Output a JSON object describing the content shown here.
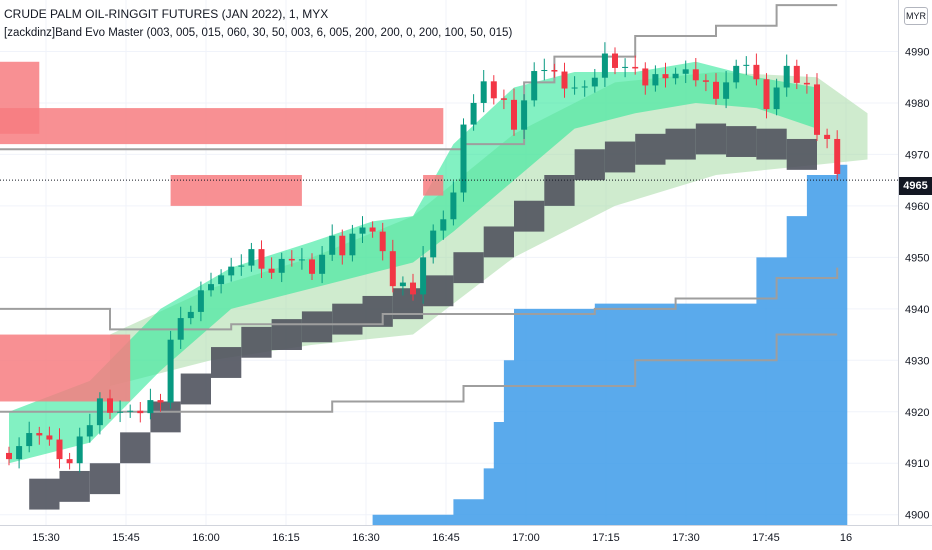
{
  "header": {
    "title": "CRUDE PALM OIL-RINGGIT FUTURES (JAN 2022), 1, MYX",
    "study": "[zackdinz]Band Evo Master (003, 005, 015, 060, 30, 50, 003, 6, 005, 200, 200, 0, 200, 100, 50, 015)"
  },
  "currency_badge": "MYR",
  "last_price_label": "4965",
  "colors": {
    "bull_candle": "#089981",
    "bear_candle": "#f23645",
    "fast_band": "#2ee89a",
    "slow_band": "#a7dba5",
    "resistance_zone": "#f77c80",
    "support_zone": "#3d9be9",
    "dark_step": "#50535e",
    "signal_magenta": "#e91e63",
    "signal_purple": "#b36fd0",
    "guide_line": "#9e9e9e",
    "price_line": "#131722"
  },
  "chart_data": {
    "type": "candlestick",
    "x_ticks": [
      "15:30",
      "15:45",
      "16:00",
      "16:15",
      "16:30",
      "16:45",
      "17:00",
      "17:15",
      "17:30",
      "17:45",
      "16"
    ],
    "y_ticks": [
      4900,
      4910,
      4920,
      4930,
      4940,
      4950,
      4960,
      4970,
      4980,
      4990
    ],
    "ylim": [
      4898,
      5000
    ],
    "last_price": 4965,
    "close_path": [
      [
        0,
        4912
      ],
      [
        3,
        4916
      ],
      [
        6,
        4910
      ],
      [
        9,
        4922
      ],
      [
        12,
        4919
      ],
      [
        15,
        4923
      ],
      [
        16,
        4934
      ],
      [
        18,
        4940
      ],
      [
        20,
        4946
      ],
      [
        22,
        4947
      ],
      [
        24,
        4951
      ],
      [
        26,
        4947
      ],
      [
        28,
        4950
      ],
      [
        30,
        4948
      ],
      [
        32,
        4953
      ],
      [
        33,
        4951
      ],
      [
        35,
        4957
      ],
      [
        36,
        4955
      ],
      [
        38,
        4945
      ],
      [
        40,
        4944
      ],
      [
        41,
        4950
      ],
      [
        43,
        4958
      ],
      [
        44,
        4962
      ],
      [
        45,
        4977
      ],
      [
        47,
        4983
      ],
      [
        49,
        4980
      ],
      [
        50,
        4976
      ],
      [
        52,
        4985
      ],
      [
        53,
        4987
      ],
      [
        55,
        4984
      ],
      [
        57,
        4982
      ],
      [
        59,
        4989
      ],
      [
        61,
        4987
      ],
      [
        63,
        4984
      ],
      [
        65,
        4986
      ],
      [
        68,
        4985
      ],
      [
        70,
        4982
      ],
      [
        73,
        4988
      ],
      [
        75,
        4980
      ],
      [
        77,
        4986
      ],
      [
        79,
        4983
      ],
      [
        80,
        4975
      ],
      [
        81,
        4973
      ],
      [
        82,
        4965
      ]
    ],
    "resistance_zones": [
      {
        "t0": -5,
        "t1": 3,
        "top": 4988,
        "bottom": 4974
      },
      {
        "t0": -5,
        "t1": 43,
        "top": 4979,
        "bottom": 4972
      },
      {
        "t0": 16,
        "t1": 29,
        "top": 4966,
        "bottom": 4960
      },
      {
        "t0": 41,
        "t1": 43,
        "top": 4966,
        "bottom": 4962
      },
      {
        "t0": -5,
        "t1": 12,
        "top": 4935,
        "bottom": 4922
      }
    ],
    "support_steps": [
      [
        36,
        4900
      ],
      [
        44,
        4903
      ],
      [
        47,
        4909
      ],
      [
        48,
        4918
      ],
      [
        49,
        4930
      ],
      [
        50,
        4940
      ],
      [
        58,
        4941
      ],
      [
        66,
        4941
      ],
      [
        74,
        4950
      ],
      [
        77,
        4958
      ],
      [
        79,
        4966
      ],
      [
        82,
        4968
      ]
    ],
    "guide_lines": [
      {
        "name": "upper",
        "points": [
          [
            -5,
            4971
          ],
          [
            15,
            4971
          ],
          [
            30,
            4971
          ],
          [
            45,
            4972
          ],
          [
            51,
            4984
          ],
          [
            54,
            4989
          ],
          [
            62,
            4993
          ],
          [
            70,
            4995
          ],
          [
            76,
            4999
          ],
          [
            82,
            4999
          ]
        ]
      },
      {
        "name": "lower",
        "points": [
          [
            -5,
            4940
          ],
          [
            10,
            4936
          ],
          [
            22,
            4937
          ],
          [
            37,
            4939
          ],
          [
            48,
            4939
          ],
          [
            58,
            4940
          ],
          [
            66,
            4942
          ],
          [
            76,
            4946
          ],
          [
            82,
            4948
          ]
        ]
      },
      {
        "name": "mid",
        "points": [
          [
            -5,
            4920
          ],
          [
            32,
            4922
          ],
          [
            45,
            4925
          ],
          [
            62,
            4930
          ],
          [
            76,
            4935
          ],
          [
            82,
            4935
          ]
        ]
      }
    ],
    "band_fast": {
      "upper": [
        [
          0,
          4920
        ],
        [
          8,
          4926
        ],
        [
          15,
          4940
        ],
        [
          22,
          4948
        ],
        [
          30,
          4953
        ],
        [
          36,
          4957
        ],
        [
          40,
          4958
        ],
        [
          44,
          4972
        ],
        [
          50,
          4983
        ],
        [
          56,
          4986
        ],
        [
          62,
          4986
        ],
        [
          68,
          4988
        ],
        [
          74,
          4985
        ],
        [
          80,
          4983
        ]
      ],
      "lower": [
        [
          0,
          4910
        ],
        [
          8,
          4914
        ],
        [
          15,
          4928
        ],
        [
          22,
          4940
        ],
        [
          30,
          4944
        ],
        [
          36,
          4947
        ],
        [
          40,
          4949
        ],
        [
          44,
          4955
        ],
        [
          50,
          4965
        ],
        [
          56,
          4975
        ],
        [
          62,
          4978
        ],
        [
          68,
          4980
        ],
        [
          74,
          4979
        ],
        [
          80,
          4975
        ]
      ]
    },
    "band_slow": {
      "upper": [
        [
          10,
          4935
        ],
        [
          20,
          4944
        ],
        [
          30,
          4950
        ],
        [
          40,
          4958
        ],
        [
          50,
          4974
        ],
        [
          60,
          4984
        ],
        [
          70,
          4986
        ],
        [
          80,
          4985
        ],
        [
          85,
          4978
        ]
      ],
      "lower": [
        [
          10,
          4925
        ],
        [
          20,
          4930
        ],
        [
          30,
          4933
        ],
        [
          40,
          4935
        ],
        [
          50,
          4950
        ],
        [
          60,
          4960
        ],
        [
          70,
          4966
        ],
        [
          80,
          4968
        ],
        [
          85,
          4969
        ]
      ]
    }
  }
}
